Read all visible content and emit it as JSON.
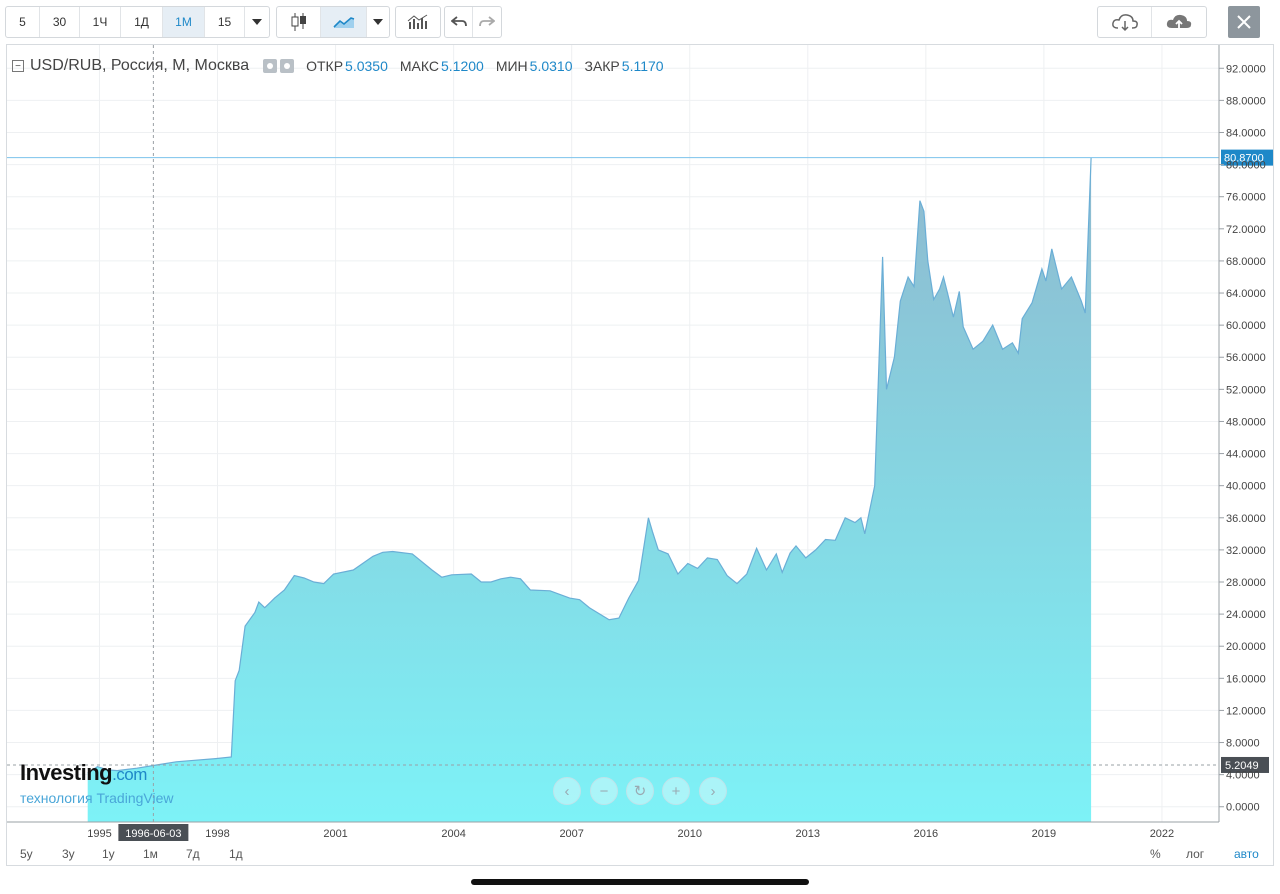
{
  "toolbar": {
    "intervals": [
      "5",
      "30",
      "1Ч",
      "1Д",
      "1М",
      "15"
    ],
    "active_interval": "1М"
  },
  "legend": {
    "symbol": "USD/RUB, Россия, М, Москва",
    "open_label": "ОТКР",
    "open_value": "5.0350",
    "high_label": "МАКС",
    "high_value": "5.1200",
    "low_label": "МИН",
    "low_value": "5.0310",
    "close_label": "ЗАКР",
    "close_value": "5.1170"
  },
  "watermark": {
    "brand": "Investing",
    "brand_suffix": ".com",
    "sub": "технология TradingView"
  },
  "bottom": {
    "ranges": [
      "5y",
      "3y",
      "1y",
      "1м",
      "7д",
      "1д"
    ],
    "percent": "%",
    "log": "лог",
    "auto": "авто"
  },
  "colors": {
    "accent": "#1e88c8",
    "area_top": "#8fb9cf",
    "area_bottom": "#7df2f7",
    "line": "#6aaed6"
  },
  "chart_data": {
    "type": "area",
    "title": "USD/RUB, Россия, М, Москва",
    "y_ticks": [
      "92.0000",
      "88.0000",
      "84.0000",
      "80.0000",
      "76.0000",
      "72.0000",
      "68.0000",
      "64.0000",
      "60.0000",
      "56.0000",
      "52.0000",
      "48.0000",
      "44.0000",
      "40.0000",
      "36.0000",
      "32.0000",
      "28.0000",
      "24.0000",
      "20.0000",
      "16.0000",
      "12.0000",
      "8.0000",
      "4.0000",
      "0.0000"
    ],
    "x_ticks": [
      "1995",
      "1996-06-03",
      "1998",
      "2001",
      "2004",
      "2007",
      "2010",
      "2013",
      "2016",
      "2019",
      "2022"
    ],
    "crosshair_date": "1996-06-03",
    "last_price_label": "80.8700",
    "crosshair_price_label": "5.2049",
    "ylim": [
      -1.9,
      94.9
    ],
    "xlim": [
      1992.7,
      2023.5
    ],
    "grid": true,
    "series": [
      {
        "name": "USD/RUB",
        "x": [
          1994.75,
          1995.0,
          1995.25,
          1995.5,
          1996.0,
          1996.5,
          1997.0,
          1997.5,
          1998.0,
          1998.4,
          1998.5,
          1998.6,
          1998.75,
          1999.0,
          1999.1,
          1999.25,
          1999.4,
          1999.5,
          1999.75,
          2000.0,
          2000.25,
          2000.5,
          2000.75,
          2001.0,
          2001.5,
          2002.0,
          2002.25,
          2002.5,
          2003.0,
          2003.5,
          2003.75,
          2004.0,
          2004.5,
          2004.75,
          2005.0,
          2005.25,
          2005.5,
          2005.75,
          2006.0,
          2006.5,
          2007.0,
          2007.25,
          2007.5,
          2008.0,
          2008.25,
          2008.5,
          2008.75,
          2009.0,
          2009.1,
          2009.25,
          2009.5,
          2009.75,
          2010.0,
          2010.25,
          2010.5,
          2010.75,
          2011.0,
          2011.25,
          2011.5,
          2011.75,
          2012.0,
          2012.25,
          2012.4,
          2012.6,
          2012.75,
          2013.0,
          2013.25,
          2013.5,
          2013.75,
          2014.0,
          2014.25,
          2014.4,
          2014.5,
          2014.75,
          2014.95,
          2015.05,
          2015.25,
          2015.4,
          2015.6,
          2015.75,
          2015.9,
          2016.0,
          2016.1,
          2016.25,
          2016.4,
          2016.5,
          2016.6,
          2016.75,
          2016.9,
          2017.0,
          2017.25,
          2017.5,
          2017.75,
          2018.0,
          2018.25,
          2018.4,
          2018.5,
          2018.75,
          2019.0,
          2019.1,
          2019.25,
          2019.5,
          2019.75,
          2020.0,
          2020.1,
          2020.25
        ],
        "values": [
          4.2,
          5.0,
          4.6,
          4.5,
          4.8,
          5.2,
          5.6,
          5.8,
          6.0,
          6.2,
          15.7,
          17.0,
          22.5,
          24.2,
          25.5,
          24.8,
          25.5,
          26.0,
          27.0,
          28.8,
          28.5,
          28.0,
          27.8,
          29.0,
          29.5,
          31.2,
          31.7,
          31.8,
          31.5,
          29.5,
          28.6,
          28.9,
          29.0,
          28.0,
          28.0,
          28.4,
          28.6,
          28.4,
          27.0,
          26.9,
          26.0,
          25.8,
          24.8,
          23.3,
          23.5,
          26.0,
          28.2,
          36.0,
          34.3,
          32.0,
          31.5,
          29.0,
          30.3,
          29.7,
          31.0,
          30.8,
          28.8,
          27.8,
          29.0,
          32.2,
          29.5,
          31.5,
          29.2,
          31.6,
          32.5,
          31.0,
          32.0,
          33.3,
          33.2,
          36.0,
          35.4,
          36.0,
          34.0,
          40.0,
          68.5,
          52.0,
          56.0,
          63.0,
          66.0,
          64.8,
          75.5,
          74.2,
          68.0,
          63.2,
          64.5,
          66.0,
          64.0,
          61.0,
          64.2,
          59.8,
          57.0,
          58.0,
          60.0,
          57.0,
          57.8,
          56.5,
          60.8,
          62.8,
          67.0,
          65.5,
          69.5,
          64.5,
          66.0,
          63.0,
          61.5,
          80.87
        ]
      }
    ]
  }
}
